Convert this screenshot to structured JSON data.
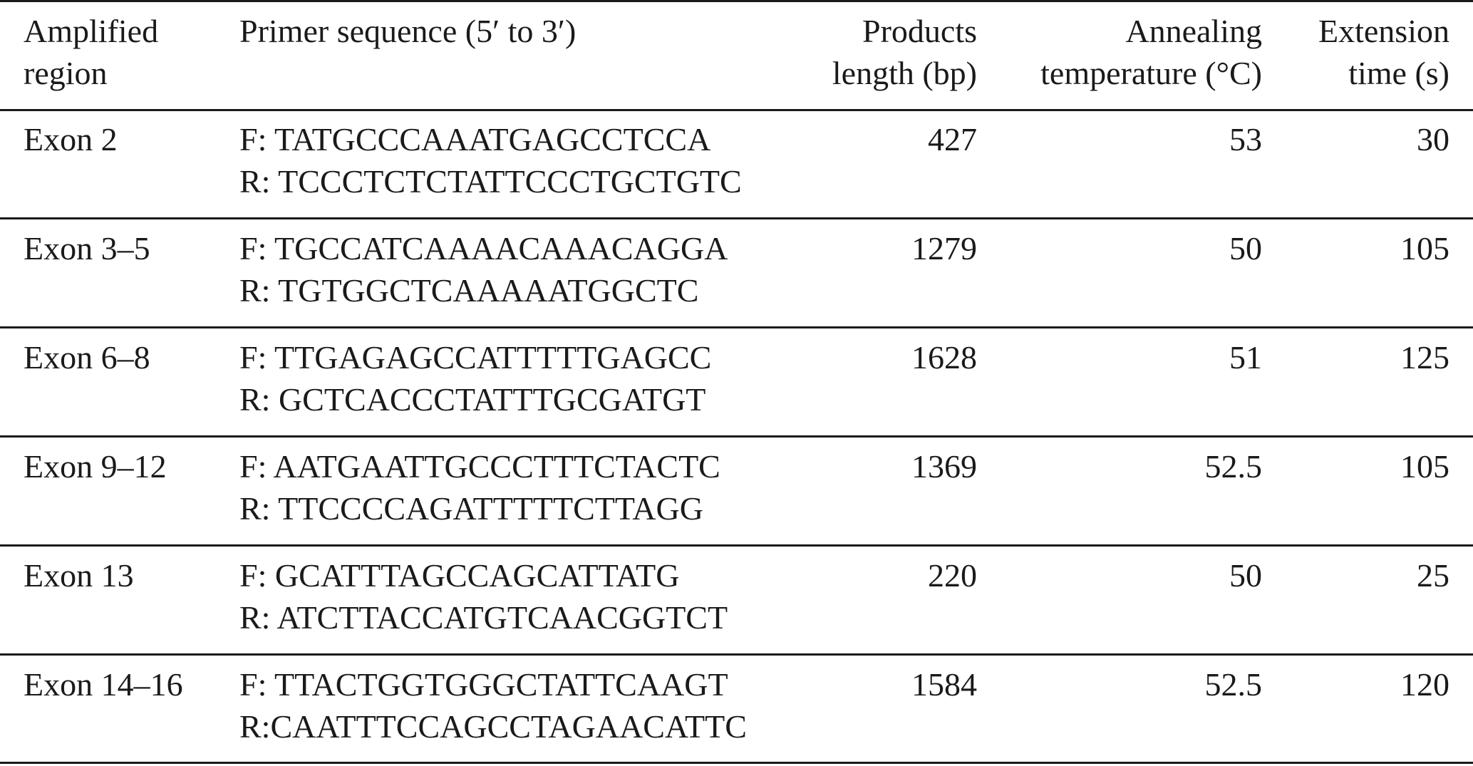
{
  "table": {
    "headers": {
      "region": [
        "Amplified",
        "region"
      ],
      "primer": [
        "Primer sequence (5′ to 3′)"
      ],
      "length": [
        "Products",
        "length (bp)"
      ],
      "annealing": [
        "Annealing",
        "temperature (°C)"
      ],
      "extension": [
        "Extension",
        "time (s)"
      ]
    },
    "rows": [
      {
        "region": "Exon 2",
        "forward": "F: TATGCCCAAATGAGCCTCCA",
        "reverse": "R: TCCCTCTCTATTCCCTGCTGTC",
        "length": "427",
        "annealing": "53",
        "extension": "30"
      },
      {
        "region": "Exon 3–5",
        "forward": "F: TGCCATCAAAACAAACAGGA",
        "reverse": "R: TGTGGCTCAAAAATGGCTC",
        "length": "1279",
        "annealing": "50",
        "extension": "105"
      },
      {
        "region": "Exon 6–8",
        "forward": "F: TTGAGAGCCATTTTTGAGCC",
        "reverse": "R: GCTCACCCTATTTGCGATGT",
        "length": "1628",
        "annealing": "51",
        "extension": "125"
      },
      {
        "region": "Exon 9–12",
        "forward": "F: AATGAATTGCCCTTTCTACTC",
        "reverse": "R: TTCCCCAGATTTTTCTTAGG",
        "length": "1369",
        "annealing": "52.5",
        "extension": "105"
      },
      {
        "region": "Exon 13",
        "forward": "F: GCATTTAGCCAGCATTATG",
        "reverse": "R: ATCTTACCATGTCAACGGTCT",
        "length": "220",
        "annealing": "50",
        "extension": "25"
      },
      {
        "region": "Exon 14–16",
        "forward": "F: TTACTGGTGGGCTATTCAAGT",
        "reverse": "R:CAATTTCCAGCCTAGAACATTC",
        "length": "1584",
        "annealing": "52.5",
        "extension": "120"
      }
    ]
  }
}
